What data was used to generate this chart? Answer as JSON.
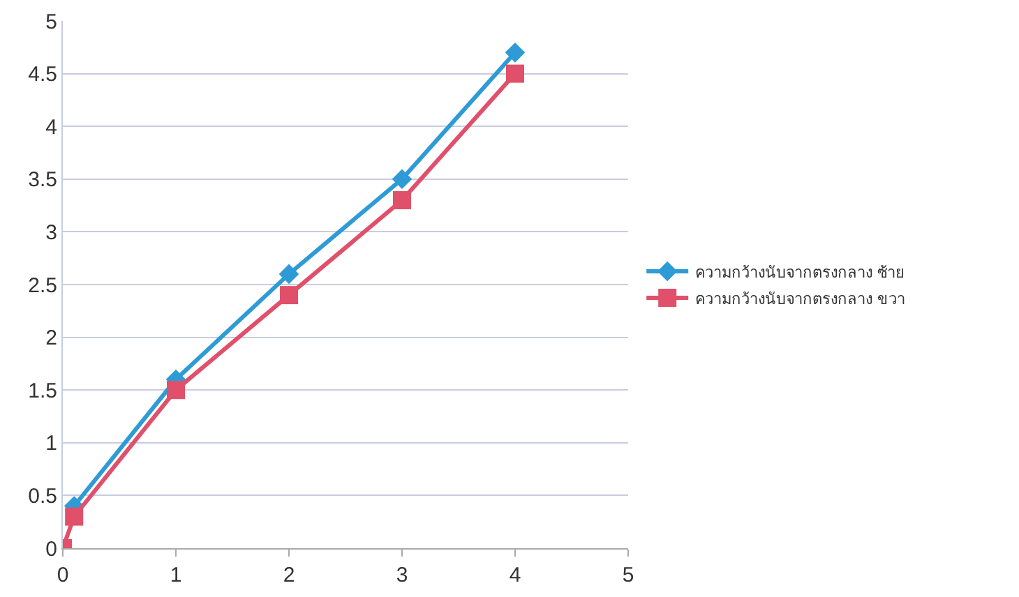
{
  "chart_data": {
    "type": "line",
    "xlim": [
      0,
      5
    ],
    "xticks": [
      0,
      1,
      2,
      3,
      4,
      5
    ],
    "ylim": [
      0,
      5
    ],
    "yticks": [
      0,
      0.5,
      1,
      1.5,
      2,
      2.5,
      3,
      3.5,
      4,
      4.5,
      5
    ],
    "grid": "y",
    "legend": "right",
    "line_style": "solid",
    "series": [
      {
        "name": "ความกว้างนับจากตรงกลาง ซ้าย",
        "color": "#2e9bd6",
        "marker": "diamond",
        "x": [
          0.1,
          1,
          2,
          3,
          4
        ],
        "values": [
          0.4,
          1.6,
          2.6,
          3.5,
          4.7
        ]
      },
      {
        "name": "ความกว้างนับจากตรงกลาง ขวา",
        "color": "#e0506a",
        "marker": "square",
        "x": [
          0,
          0.1,
          1,
          2,
          3,
          4
        ],
        "values": [
          0,
          0.3,
          1.5,
          2.4,
          3.3,
          4.5
        ]
      }
    ]
  }
}
